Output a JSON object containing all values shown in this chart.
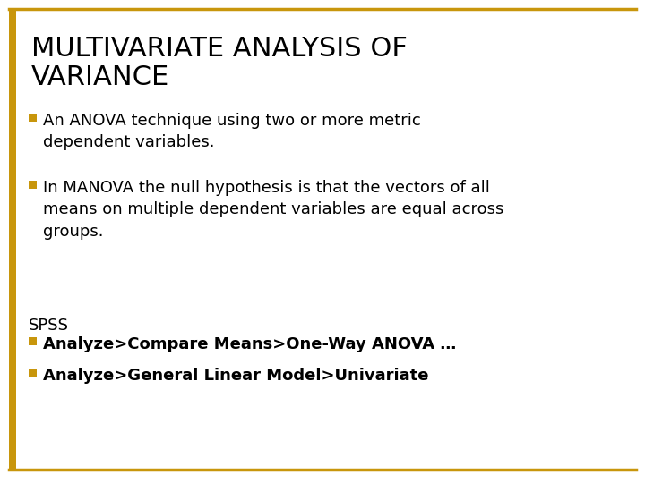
{
  "title_line1": "MULTIVARIATE ANALYSIS OF",
  "title_line2": "VARIANCE",
  "title_color": "#000000",
  "title_fontsize": 22,
  "background_color": "#ffffff",
  "border_color": "#C8960C",
  "left_bar_color": "#C8960C",
  "bullet_color": "#C8960C",
  "bullet_points": [
    "An ANOVA technique using two or more metric\ndependent variables.",
    "In MANOVA the null hypothesis is that the vectors of all\nmeans on multiple dependent variables are equal across\ngroups."
  ],
  "spss_label": "SPSS",
  "spss_bullets": [
    "Analyze>Compare Means>One-Way ANOVA …",
    "Analyze>General Linear Model>Univariate"
  ],
  "bullet_fontsize": 13,
  "spss_label_fontsize": 13,
  "spss_bullet_fontsize": 13
}
